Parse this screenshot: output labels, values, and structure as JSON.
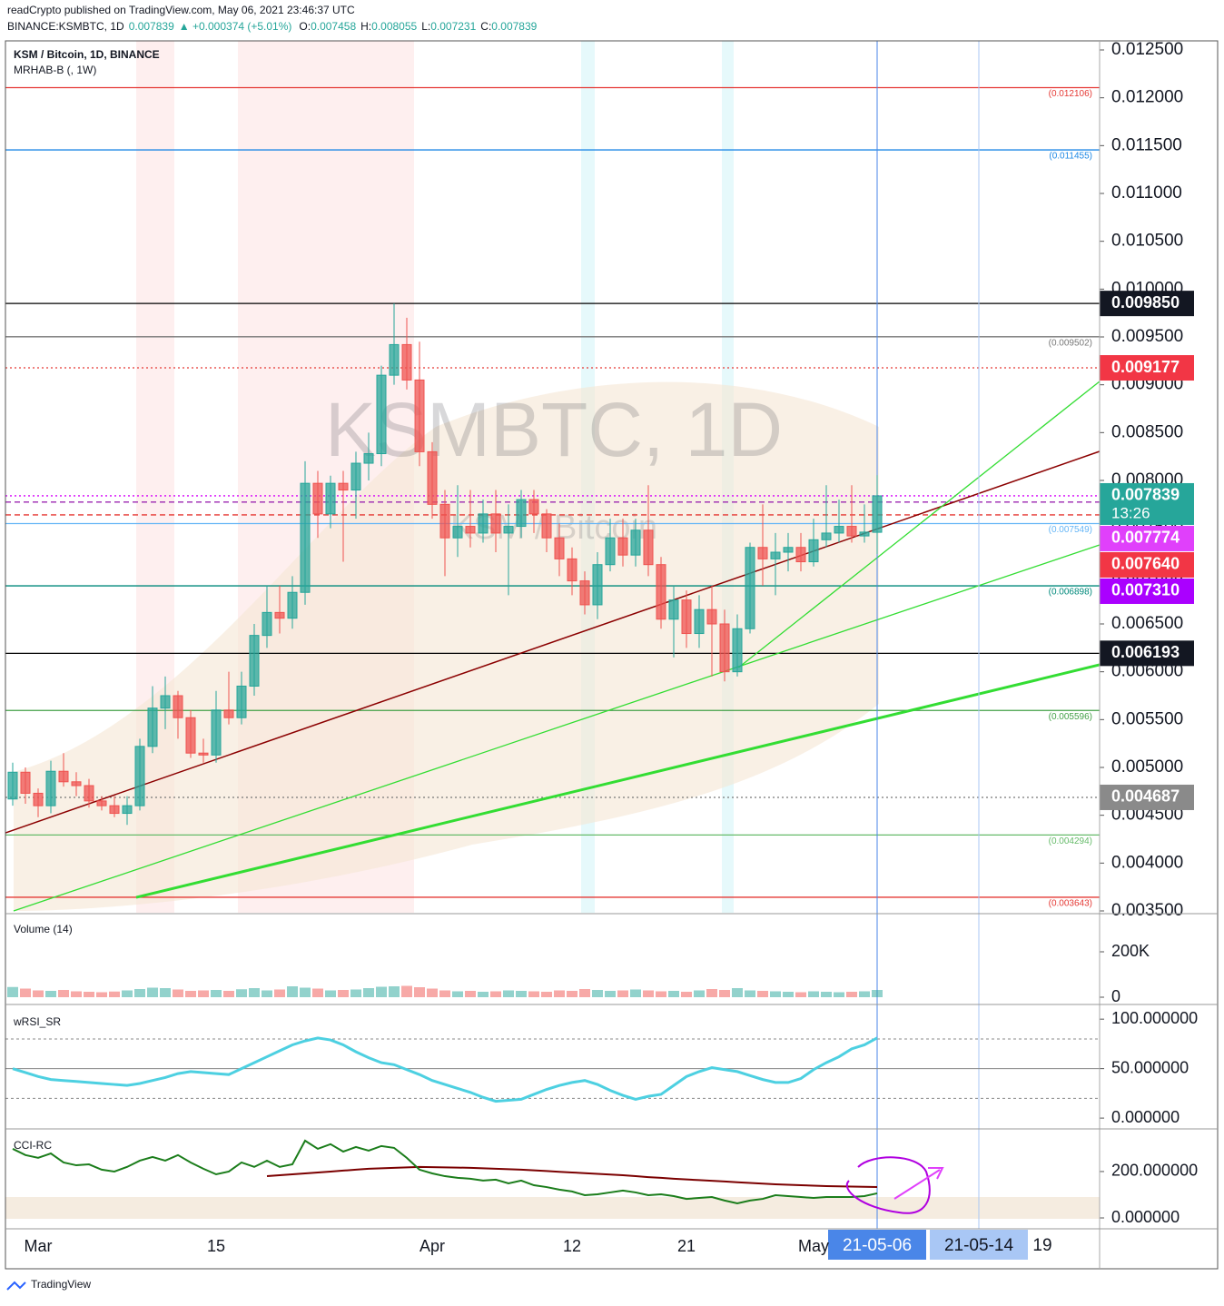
{
  "chart_data": {
    "type": "candlestick",
    "header": {
      "publisher": "readCrypto published on TradingView.com, May 06, 2021 23:46:37 UTC",
      "symbol": "BINANCE:KSMBTC, 1D",
      "price": "0.007839",
      "change": "▲ +0.000374 (+5.01%)",
      "ohlc": [
        {
          "key": "O:",
          "val": "0.007458"
        },
        {
          "key": "H:",
          "val": "0.008055"
        },
        {
          "key": "L:",
          "val": "0.007231"
        },
        {
          "key": "C:",
          "val": "0.007839"
        }
      ]
    },
    "legend": [
      "KSM / Bitcoin, 1D, BINANCE",
      "MRHAB-B (, 1W)"
    ],
    "watermark": [
      "KSMBTC, 1D",
      "KSM / Bitcoin"
    ],
    "up_color": "#26a69a",
    "down_color": "#ef5350",
    "open": [
      0.00467,
      0.00495,
      0.00473,
      0.0046,
      0.00496,
      0.00485,
      0.00481,
      0.00465,
      0.0046,
      0.00452,
      0.0046,
      0.00522,
      0.00562,
      0.00575,
      0.00552,
      0.00515,
      0.00513,
      0.0056,
      0.00552,
      0.00585,
      0.00638,
      0.00662,
      0.00656,
      0.00683,
      0.00797,
      0.00765,
      0.00797,
      0.0079,
      0.00818,
      0.00828,
      0.0091,
      0.00942,
      0.00905,
      0.0083,
      0.00775,
      0.0074,
      0.00752,
      0.00745,
      0.00765,
      0.00745,
      0.00752,
      0.0078,
      0.00765,
      0.0074,
      0.00718,
      0.00695,
      0.0067,
      0.00712,
      0.0074,
      0.00722,
      0.00748,
      0.00712,
      0.00655,
      0.00675,
      0.0064,
      0.00665,
      0.0065,
      0.006,
      0.00645,
      0.0073,
      0.00718,
      0.00725,
      0.0073,
      0.00715,
      0.00738,
      0.00745,
      0.00752,
      0.00742,
      0.007458
    ],
    "high": [
      0.00505,
      0.005,
      0.00478,
      0.00507,
      0.00515,
      0.00495,
      0.00488,
      0.0047,
      0.0047,
      0.0047,
      0.0053,
      0.00585,
      0.00595,
      0.0058,
      0.0056,
      0.0053,
      0.0058,
      0.006,
      0.006,
      0.0065,
      0.0069,
      0.0069,
      0.007,
      0.0082,
      0.0081,
      0.00805,
      0.0081,
      0.0083,
      0.0085,
      0.0092,
      0.00985,
      0.0097,
      0.00945,
      0.0084,
      0.0079,
      0.00795,
      0.0079,
      0.0078,
      0.0079,
      0.00775,
      0.0079,
      0.0079,
      0.0077,
      0.00755,
      0.0073,
      0.00705,
      0.00725,
      0.0076,
      0.0076,
      0.0076,
      0.00795,
      0.0072,
      0.0069,
      0.00685,
      0.0068,
      0.0069,
      0.00665,
      0.0066,
      0.00735,
      0.00775,
      0.00745,
      0.00745,
      0.00745,
      0.0076,
      0.00795,
      0.0078,
      0.00795,
      0.00775,
      0.008055
    ],
    "low": [
      0.0046,
      0.00462,
      0.00448,
      0.00452,
      0.0048,
      0.0047,
      0.00458,
      0.00455,
      0.00448,
      0.0044,
      0.00455,
      0.00515,
      0.0054,
      0.0053,
      0.0051,
      0.00505,
      0.00505,
      0.00545,
      0.00545,
      0.00575,
      0.00625,
      0.0064,
      0.00645,
      0.0067,
      0.0074,
      0.0075,
      0.00715,
      0.0076,
      0.008,
      0.00815,
      0.009,
      0.00895,
      0.00815,
      0.0076,
      0.007,
      0.0072,
      0.0073,
      0.00735,
      0.00725,
      0.0068,
      0.0074,
      0.00745,
      0.00725,
      0.007,
      0.0068,
      0.0066,
      0.00655,
      0.00705,
      0.0071,
      0.0071,
      0.007,
      0.00645,
      0.00615,
      0.00625,
      0.00625,
      0.00595,
      0.0059,
      0.00595,
      0.0064,
      0.0069,
      0.0068,
      0.00705,
      0.00705,
      0.0071,
      0.0073,
      0.00735,
      0.00735,
      0.00735,
      0.007231
    ],
    "close": [
      0.00495,
      0.00473,
      0.0046,
      0.00496,
      0.00485,
      0.00481,
      0.00465,
      0.0046,
      0.00452,
      0.0046,
      0.00522,
      0.00562,
      0.00575,
      0.00552,
      0.00515,
      0.00513,
      0.0056,
      0.00552,
      0.00585,
      0.00638,
      0.00662,
      0.00656,
      0.00683,
      0.00797,
      0.00765,
      0.00797,
      0.0079,
      0.00818,
      0.00828,
      0.0091,
      0.00942,
      0.00905,
      0.0083,
      0.00775,
      0.0074,
      0.00752,
      0.00745,
      0.00765,
      0.00745,
      0.00752,
      0.0078,
      0.00765,
      0.0074,
      0.00718,
      0.00695,
      0.0067,
      0.00712,
      0.0074,
      0.00722,
      0.00748,
      0.00712,
      0.00655,
      0.00675,
      0.0064,
      0.00665,
      0.0065,
      0.006,
      0.00645,
      0.0073,
      0.00718,
      0.00725,
      0.0073,
      0.00715,
      0.00738,
      0.00745,
      0.00752,
      0.00742,
      0.00746,
      0.007839
    ],
    "ylim": [
      0.003481,
      0.012595
    ],
    "yticks": [
      {
        "value": 0.0125,
        "label": "0.012500"
      },
      {
        "value": 0.012,
        "label": "0.012000"
      },
      {
        "value": 0.0115,
        "label": "0.011500"
      },
      {
        "value": 0.011,
        "label": "0.011000"
      },
      {
        "value": 0.0105,
        "label": "0.010500"
      },
      {
        "value": 0.01,
        "label": "0.010000"
      },
      {
        "value": 0.0095,
        "label": "0.009500"
      },
      {
        "value": 0.009,
        "label": "0.009000"
      },
      {
        "value": 0.0085,
        "label": "0.008500"
      },
      {
        "value": 0.008,
        "label": "0.008000"
      },
      {
        "value": 0.0075,
        "label": "0.007500"
      },
      {
        "value": 0.007,
        "label": "0.007000"
      },
      {
        "value": 0.0065,
        "label": "0.006500"
      },
      {
        "value": 0.006,
        "label": "0.006000"
      },
      {
        "value": 0.0055,
        "label": "0.005500"
      },
      {
        "value": 0.005,
        "label": "0.005000"
      },
      {
        "value": 0.0045,
        "label": "0.004500"
      },
      {
        "value": 0.004,
        "label": "0.004000"
      },
      {
        "value": 0.0035,
        "label": "0.003500"
      }
    ],
    "xticks": [
      {
        "index": 2,
        "label": "Mar"
      },
      {
        "index": 16,
        "label": "15"
      },
      {
        "index": 33,
        "label": "Apr"
      },
      {
        "index": 44,
        "label": "12"
      },
      {
        "index": 53,
        "label": "21"
      },
      {
        "index": 63,
        "label": "May"
      }
    ],
    "levels": [
      {
        "value": 0.012106,
        "color": "#e53935",
        "dash": "",
        "label": "(0.012106)"
      },
      {
        "value": 0.011455,
        "color": "#1e88e5",
        "dash": "",
        "label": "(0.011455)"
      },
      {
        "value": 0.00985,
        "color": "#000000",
        "dash": ""
      },
      {
        "value": 0.009502,
        "color": "#787878",
        "dash": "",
        "label": "(0.009502)"
      },
      {
        "value": 0.009177,
        "color": "#e53935",
        "dash": "2 3"
      },
      {
        "value": 0.007839,
        "color": "#d500f9",
        "dash": "2 3"
      },
      {
        "value": 0.00764,
        "color": "#e53935",
        "dash": "6 4"
      },
      {
        "value": 0.007549,
        "color": "#64b5f6",
        "dash": "",
        "label": "(0.007549)"
      },
      {
        "value": 0.007774,
        "color": "#9c27b0",
        "dash": "6 4"
      },
      {
        "value": 0.006898,
        "color": "#00897b",
        "dash": "",
        "label": "(0.006898)"
      },
      {
        "value": 0.006193,
        "color": "#000000",
        "dash": ""
      },
      {
        "value": 0.005596,
        "color": "#43a047",
        "dash": "",
        "label": "(0.005596)"
      },
      {
        "value": 0.004687,
        "color": "#787878",
        "dash": "2 3"
      },
      {
        "value": 0.004294,
        "color": "#66bb6a",
        "dash": "",
        "label": "(0.004294)"
      },
      {
        "value": 0.003643,
        "color": "#e53935",
        "dash": "",
        "label": "(0.003643)"
      }
    ],
    "price_tags": [
      {
        "value": 0.00985,
        "label": "0.009850",
        "color": "#131722"
      },
      {
        "value": 0.009177,
        "label": "0.009177",
        "color": "#f23645"
      },
      {
        "value": 0.007839,
        "label": "0.007839",
        "sub": "13:26",
        "color": "#26a69a"
      },
      {
        "value": 0.007774,
        "label": "0.007774",
        "color": "#e040fb"
      },
      {
        "value": 0.00764,
        "label": "0.007640",
        "color": "#f23645"
      },
      {
        "value": 0.00731,
        "label": "0.007310",
        "color": "#aa00ff"
      },
      {
        "value": 0.006193,
        "label": "0.006193",
        "color": "#131722"
      },
      {
        "value": 0.004687,
        "label": "0.004687",
        "color": "#8a8a8a"
      }
    ],
    "trendlines": [
      {
        "color": "#8b0000",
        "width": 1.5,
        "points": [
          [
            -0.57,
            0.004316
          ],
          [
            85.5,
            0.008304
          ]
        ]
      },
      {
        "color": "#33dd33",
        "width": 3,
        "points": [
          [
            9.71,
            0.003642
          ],
          [
            85.5,
            0.006073
          ]
        ]
      },
      {
        "color": "#33dd33",
        "width": 1.3,
        "points": [
          [
            0.07,
            0.0035
          ],
          [
            85.5,
            0.007326
          ]
        ]
      },
      {
        "color": "#33dd33",
        "width": 1.3,
        "points": [
          [
            57.1,
            0.006044
          ],
          [
            85.5,
            0.009035
          ]
        ]
      }
    ],
    "date_tags": [
      {
        "index": 68,
        "label": "21-05-06",
        "color": "#4a86e8",
        "text": "#ffffff"
      },
      {
        "index": 76,
        "label": "21-05-14",
        "color": "#a9c7f5",
        "text": "#131722"
      },
      {
        "index": 81,
        "label": "19"
      }
    ],
    "volume": {
      "title": "Volume (14)",
      "values": [
        45000,
        38000,
        30000,
        28000,
        32000,
        26000,
        24000,
        22000,
        25000,
        30000,
        36000,
        42000,
        40000,
        34000,
        28000,
        30000,
        32000,
        28000,
        35000,
        40000,
        30000,
        34000,
        48000,
        42000,
        38000,
        30000,
        32000,
        34000,
        40000,
        46000,
        48000,
        50000,
        44000,
        38000,
        30000,
        26000,
        28000,
        24000,
        26000,
        30000,
        28000,
        26000,
        24000,
        30000,
        28000,
        36000,
        32000,
        28000,
        30000,
        34000,
        30000,
        26000,
        28000,
        24000,
        30000,
        36000,
        32000,
        40000,
        30000,
        28000,
        26000,
        24000,
        22000,
        26000,
        24000,
        22000,
        24000,
        26000,
        32000
      ],
      "ylim": [
        -28000,
        360000
      ],
      "yticks": [
        {
          "value": 200000,
          "label": "200K"
        },
        0
      ]
    },
    "wrsi": {
      "title": "wRSI_SR",
      "values": [
        50,
        46,
        42,
        39,
        38,
        37,
        36,
        35,
        34,
        33,
        35,
        38,
        41,
        45,
        47,
        46,
        45,
        44,
        50,
        56,
        62,
        68,
        74,
        78,
        81,
        79,
        74,
        67,
        61,
        56,
        54,
        49,
        44,
        38,
        34,
        30,
        26,
        21,
        17,
        18,
        19,
        24,
        29,
        33,
        36,
        38,
        34,
        28,
        23,
        19,
        22,
        24,
        33,
        42,
        47,
        51,
        49,
        47,
        43,
        39,
        36,
        36,
        40,
        49,
        56,
        62,
        70,
        74,
        81
      ],
      "ylim": [
        -10,
        113
      ],
      "yticks": [
        {
          "value": 100,
          "label": "100.000000"
        },
        {
          "value": 50,
          "label": "50.000000"
        },
        {
          "value": 0,
          "label": "0.000000"
        }
      ]
    },
    "cci": {
      "title": "CCI-RC",
      "values": [
        298,
        271,
        259,
        278,
        239,
        227,
        231,
        208,
        200,
        220,
        247,
        263,
        247,
        271,
        239,
        212,
        188,
        200,
        239,
        220,
        247,
        220,
        231,
        333,
        298,
        318,
        286,
        306,
        290,
        310,
        302,
        259,
        208,
        192,
        180,
        173,
        169,
        161,
        165,
        149,
        161,
        141,
        133,
        122,
        114,
        98,
        102,
        110,
        118,
        110,
        98,
        102,
        94,
        82,
        86,
        90,
        75,
        63,
        75,
        82,
        98,
        94,
        90,
        86,
        90,
        90,
        90,
        94,
        106
      ],
      "signal": [
        null,
        null,
        null,
        null,
        null,
        null,
        null,
        null,
        null,
        null,
        null,
        null,
        null,
        null,
        null,
        null,
        null,
        null,
        null,
        null,
        180,
        184,
        188,
        192,
        196,
        200,
        204,
        208,
        212,
        214,
        216,
        218,
        220,
        219,
        218,
        217,
        216,
        214,
        212,
        210,
        208,
        205,
        202,
        199,
        196,
        193,
        190,
        187,
        184,
        180,
        176,
        173,
        169,
        166,
        163,
        160,
        157,
        154,
        151,
        148,
        145,
        143,
        141,
        139,
        137,
        136,
        135,
        134,
        133
      ],
      "ylim": [
        -43,
        376
      ],
      "yticks": [
        {
          "value": 200,
          "label": "200.000000"
        },
        {
          "value": 0,
          "label": "0.000000"
        }
      ]
    },
    "footer": "TradingView"
  }
}
